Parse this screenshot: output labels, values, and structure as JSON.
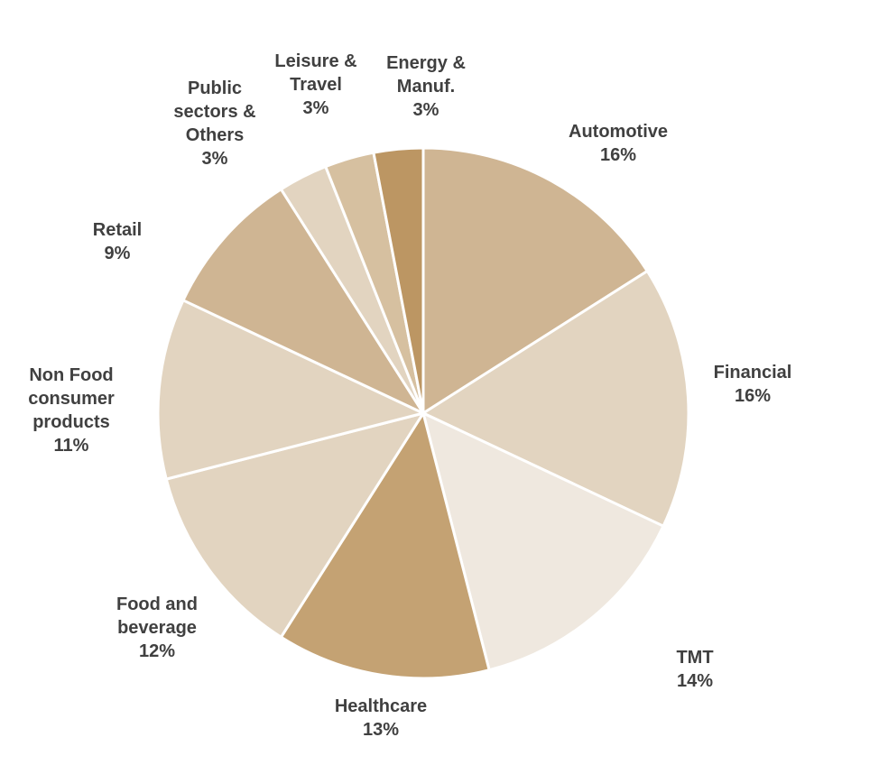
{
  "chart_data": {
    "type": "pie",
    "categories": [
      "Automotive",
      "Financial",
      "TMT",
      "Healthcare",
      "Food and beverage",
      "Non Food consumer products",
      "Retail",
      "Public sectors & Others",
      "Leisure & Travel",
      "Energy & Manuf."
    ],
    "values": [
      16,
      16,
      14,
      13,
      12,
      11,
      9,
      3,
      3,
      3
    ],
    "value_labels": [
      "16%",
      "16%",
      "14%",
      "13%",
      "12%",
      "11%",
      "9%",
      "3%",
      "3%",
      "3%"
    ],
    "colors": [
      "#cfb593",
      "#e2d4c0",
      "#efe8df",
      "#c4a273",
      "#e2d4c0",
      "#e2d4c0",
      "#cfb593",
      "#e2d4c0",
      "#d6c0a0",
      "#bc9663"
    ]
  }
}
